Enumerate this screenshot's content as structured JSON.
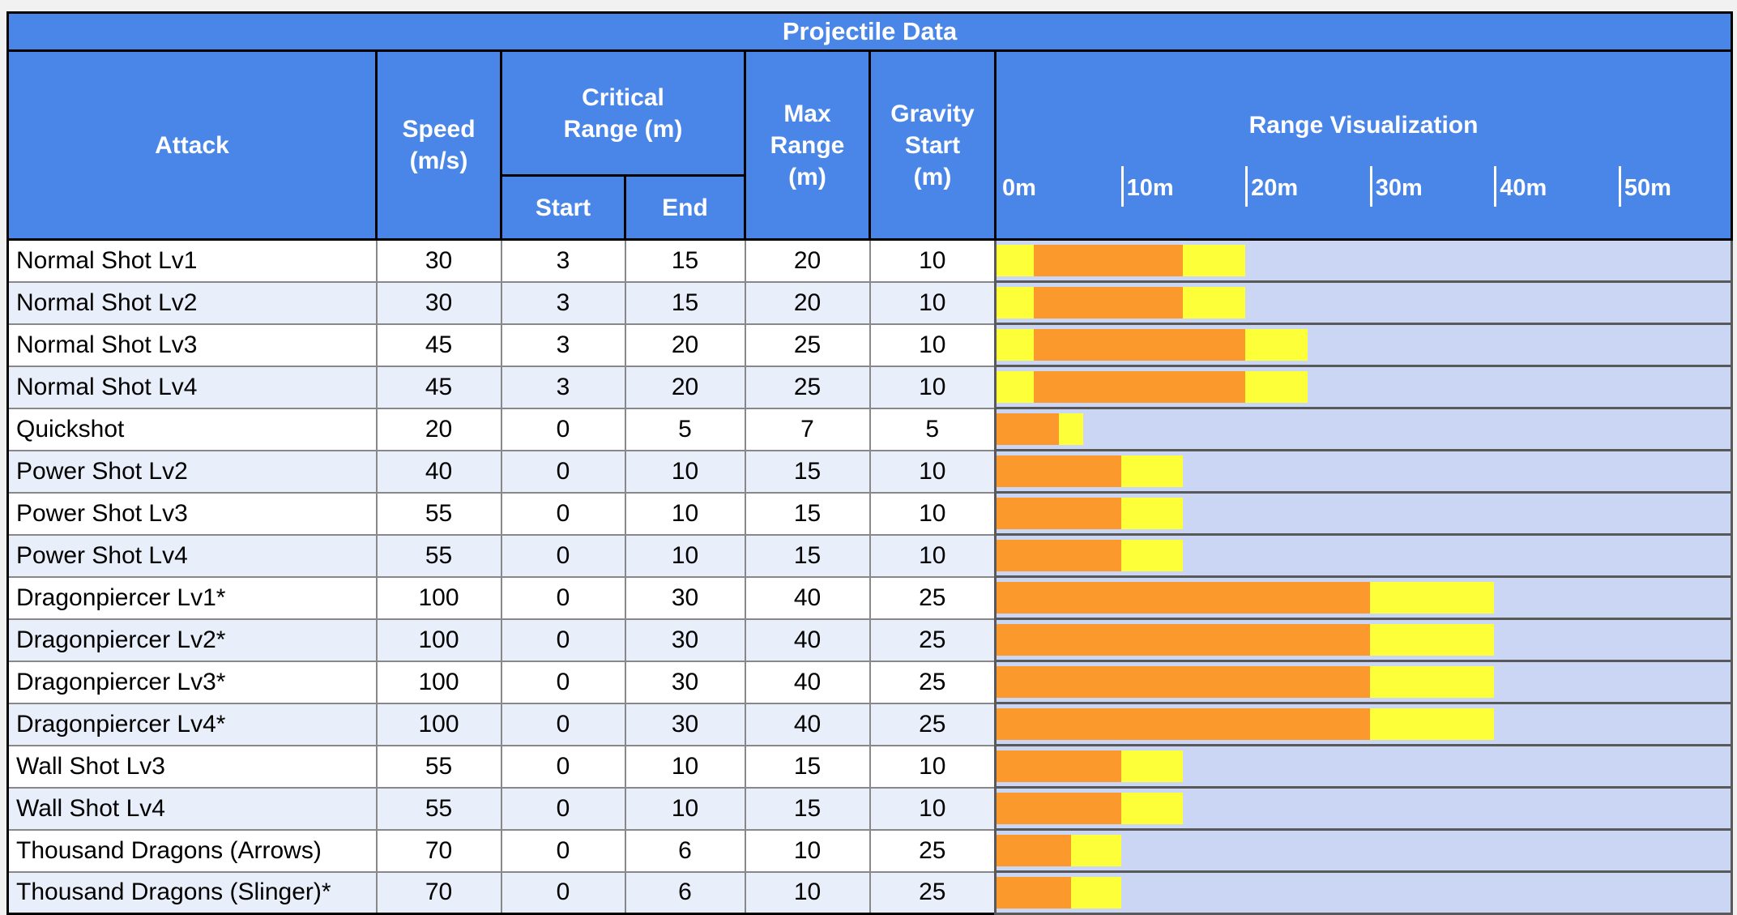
{
  "table": {
    "title": "Projectile Data",
    "headers": {
      "attack": "Attack",
      "speed": "Speed\n(m/s)",
      "critical_range": "Critical\nRange (m)",
      "critical_start": "Start",
      "critical_end": "End",
      "max_range": "Max\nRange\n(m)",
      "gravity_start": "Gravity\nStart\n(m)",
      "range_visualization": "Range Visualization"
    },
    "axis_ticks": [
      {
        "label": "0m",
        "m": 0
      },
      {
        "label": "10m",
        "m": 10
      },
      {
        "label": "20m",
        "m": 20
      },
      {
        "label": "30m",
        "m": 30
      },
      {
        "label": "40m",
        "m": 40
      },
      {
        "label": "50m",
        "m": 50
      }
    ],
    "axis_max_m": 59
  },
  "chart_data": {
    "type": "table",
    "title": "Projectile Data",
    "columns": [
      "Attack",
      "Speed (m/s)",
      "Critical Range Start (m)",
      "Critical Range End (m)",
      "Max Range (m)",
      "Gravity Start (m)"
    ],
    "rows": [
      {
        "attack": "Normal Shot Lv1",
        "speed": 30,
        "crit_start": 3,
        "crit_end": 15,
        "max_range": 20,
        "gravity_start": 10
      },
      {
        "attack": "Normal Shot Lv2",
        "speed": 30,
        "crit_start": 3,
        "crit_end": 15,
        "max_range": 20,
        "gravity_start": 10
      },
      {
        "attack": "Normal Shot Lv3",
        "speed": 45,
        "crit_start": 3,
        "crit_end": 20,
        "max_range": 25,
        "gravity_start": 10
      },
      {
        "attack": "Normal Shot Lv4",
        "speed": 45,
        "crit_start": 3,
        "crit_end": 20,
        "max_range": 25,
        "gravity_start": 10
      },
      {
        "attack": "Quickshot",
        "speed": 20,
        "crit_start": 0,
        "crit_end": 5,
        "max_range": 7,
        "gravity_start": 5
      },
      {
        "attack": "Power Shot Lv2",
        "speed": 40,
        "crit_start": 0,
        "crit_end": 10,
        "max_range": 15,
        "gravity_start": 10
      },
      {
        "attack": "Power Shot Lv3",
        "speed": 55,
        "crit_start": 0,
        "crit_end": 10,
        "max_range": 15,
        "gravity_start": 10
      },
      {
        "attack": "Power Shot Lv4",
        "speed": 55,
        "crit_start": 0,
        "crit_end": 10,
        "max_range": 15,
        "gravity_start": 10
      },
      {
        "attack": "Dragonpiercer Lv1*",
        "speed": 100,
        "crit_start": 0,
        "crit_end": 30,
        "max_range": 40,
        "gravity_start": 25
      },
      {
        "attack": "Dragonpiercer Lv2*",
        "speed": 100,
        "crit_start": 0,
        "crit_end": 30,
        "max_range": 40,
        "gravity_start": 25
      },
      {
        "attack": "Dragonpiercer Lv3*",
        "speed": 100,
        "crit_start": 0,
        "crit_end": 30,
        "max_range": 40,
        "gravity_start": 25
      },
      {
        "attack": "Dragonpiercer Lv4*",
        "speed": 100,
        "crit_start": 0,
        "crit_end": 30,
        "max_range": 40,
        "gravity_start": 25
      },
      {
        "attack": "Wall Shot Lv3",
        "speed": 55,
        "crit_start": 0,
        "crit_end": 10,
        "max_range": 15,
        "gravity_start": 10
      },
      {
        "attack": "Wall Shot Lv4",
        "speed": 55,
        "crit_start": 0,
        "crit_end": 10,
        "max_range": 15,
        "gravity_start": 10
      },
      {
        "attack": "Thousand Dragons (Arrows)",
        "speed": 70,
        "crit_start": 0,
        "crit_end": 6,
        "max_range": 10,
        "gravity_start": 25
      },
      {
        "attack": "Thousand Dragons (Slinger)*",
        "speed": 70,
        "crit_start": 0,
        "crit_end": 6,
        "max_range": 10,
        "gravity_start": 25
      }
    ],
    "range_visualization": {
      "orange_segment": "critical range (start to end)",
      "yellow_segment": "in max range but non-critical (0 to start, end to max)",
      "axis_ticks_m": [
        0,
        10,
        20,
        30,
        40,
        50
      ],
      "axis_max_m": 59
    }
  },
  "colors": {
    "page_background": "#f1f1f1",
    "header_blue": "#4a86e8",
    "header_text": "#ffffff",
    "orange": "#fb992c",
    "yellow": "#fdff38",
    "viz_background": "#cad6f3",
    "viz_border": "#595959",
    "row_white": "#ffffff",
    "row_alt": "#e8eefa",
    "body_border": "#888888",
    "body_text": "#000000",
    "outer_border": "#000000"
  }
}
